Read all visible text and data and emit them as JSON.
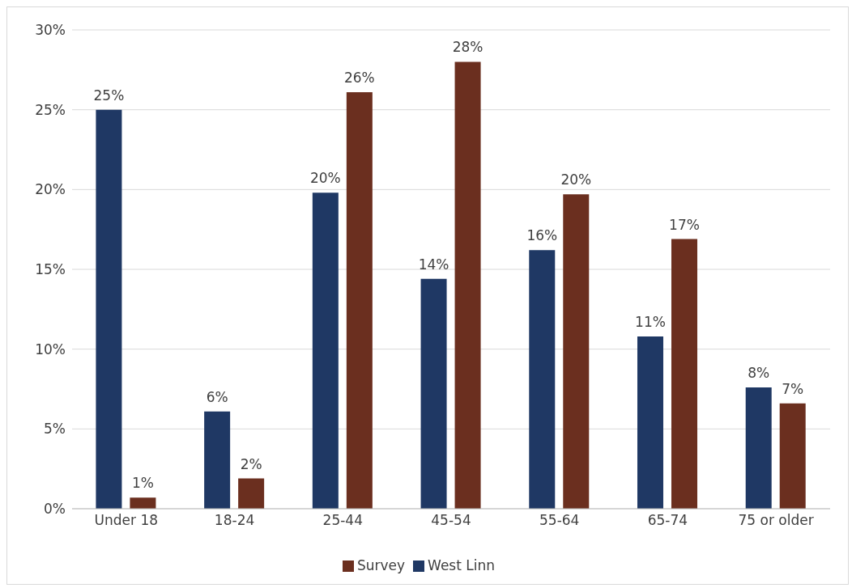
{
  "chart_data": {
    "type": "bar",
    "categories": [
      "Under 18",
      "18-24",
      "25-44",
      "45-54",
      "55-64",
      "65-74",
      "75 or older"
    ],
    "series": [
      {
        "name": "West Linn",
        "color": "#1f3864",
        "values": [
          25.0,
          6.1,
          19.8,
          14.4,
          16.2,
          10.8,
          7.6
        ],
        "value_labels": [
          "25%",
          "6%",
          "20%",
          "14%",
          "16%",
          "11%",
          "8%"
        ]
      },
      {
        "name": "Survey",
        "color": "#6b2f1f",
        "values": [
          0.7,
          1.9,
          26.1,
          28.0,
          19.7,
          16.9,
          6.6
        ],
        "value_labels": [
          "1%",
          "2%",
          "26%",
          "28%",
          "20%",
          "17%",
          "7%"
        ]
      }
    ],
    "ylim": [
      0,
      30
    ],
    "yticks": [
      {
        "value": 0,
        "label": "0%"
      },
      {
        "value": 5,
        "label": "5%"
      },
      {
        "value": 10,
        "label": "10%"
      },
      {
        "value": 15,
        "label": "15%"
      },
      {
        "value": 20,
        "label": "20%"
      },
      {
        "value": 25,
        "label": "25%"
      },
      {
        "value": 30,
        "label": "30%"
      }
    ],
    "grid": "y",
    "legend": "bottom"
  }
}
